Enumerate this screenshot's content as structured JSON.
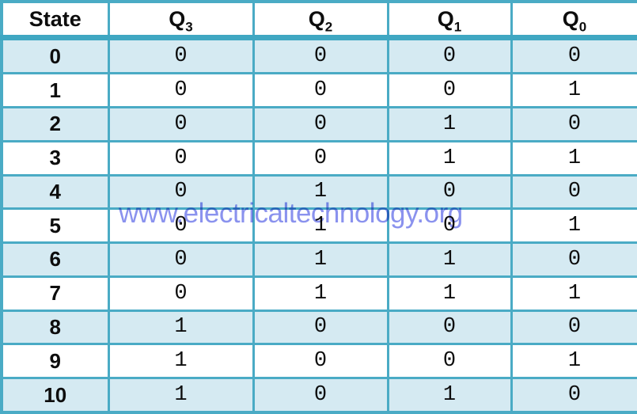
{
  "colors": {
    "border": "#4aabc5",
    "header_rule": "#3fa7c2",
    "row_alternate": "#d5eaf2",
    "row_base": "#ffffff",
    "text": "#0d0d0d",
    "watermark": "#7d86ed"
  },
  "watermark": {
    "text": "www.electricaltechnology.org"
  },
  "table": {
    "headers": [
      {
        "label": "State",
        "sub": ""
      },
      {
        "label": "Q",
        "sub": "3"
      },
      {
        "label": "Q",
        "sub": "2"
      },
      {
        "label": "Q",
        "sub": "1"
      },
      {
        "label": "Q",
        "sub": "0"
      }
    ],
    "rows": [
      {
        "state": "0",
        "values": [
          "0",
          "0",
          "0",
          "0"
        ]
      },
      {
        "state": "1",
        "values": [
          "0",
          "0",
          "0",
          "1"
        ]
      },
      {
        "state": "2",
        "values": [
          "0",
          "0",
          "1",
          "0"
        ]
      },
      {
        "state": "3",
        "values": [
          "0",
          "0",
          "1",
          "1"
        ]
      },
      {
        "state": "4",
        "values": [
          "0",
          "1",
          "0",
          "0"
        ]
      },
      {
        "state": "5",
        "values": [
          "0",
          "1",
          "0",
          "1"
        ]
      },
      {
        "state": "6",
        "values": [
          "0",
          "1",
          "1",
          "0"
        ]
      },
      {
        "state": "7",
        "values": [
          "0",
          "1",
          "1",
          "1"
        ]
      },
      {
        "state": "8",
        "values": [
          "1",
          "0",
          "0",
          "0"
        ]
      },
      {
        "state": "9",
        "values": [
          "1",
          "0",
          "0",
          "1"
        ]
      },
      {
        "state": "10",
        "values": [
          "1",
          "0",
          "1",
          "0"
        ]
      }
    ]
  },
  "chart_data": {
    "type": "table",
    "title": "Binary counter state table",
    "columns": [
      "State",
      "Q3",
      "Q2",
      "Q1",
      "Q0"
    ],
    "rows": [
      [
        0,
        0,
        0,
        0,
        0
      ],
      [
        1,
        0,
        0,
        0,
        1
      ],
      [
        2,
        0,
        0,
        1,
        0
      ],
      [
        3,
        0,
        0,
        1,
        1
      ],
      [
        4,
        0,
        1,
        0,
        0
      ],
      [
        5,
        0,
        1,
        0,
        1
      ],
      [
        6,
        0,
        1,
        1,
        0
      ],
      [
        7,
        0,
        1,
        1,
        1
      ],
      [
        8,
        1,
        0,
        0,
        0
      ],
      [
        9,
        1,
        0,
        0,
        1
      ],
      [
        10,
        1,
        0,
        1,
        0
      ]
    ]
  }
}
